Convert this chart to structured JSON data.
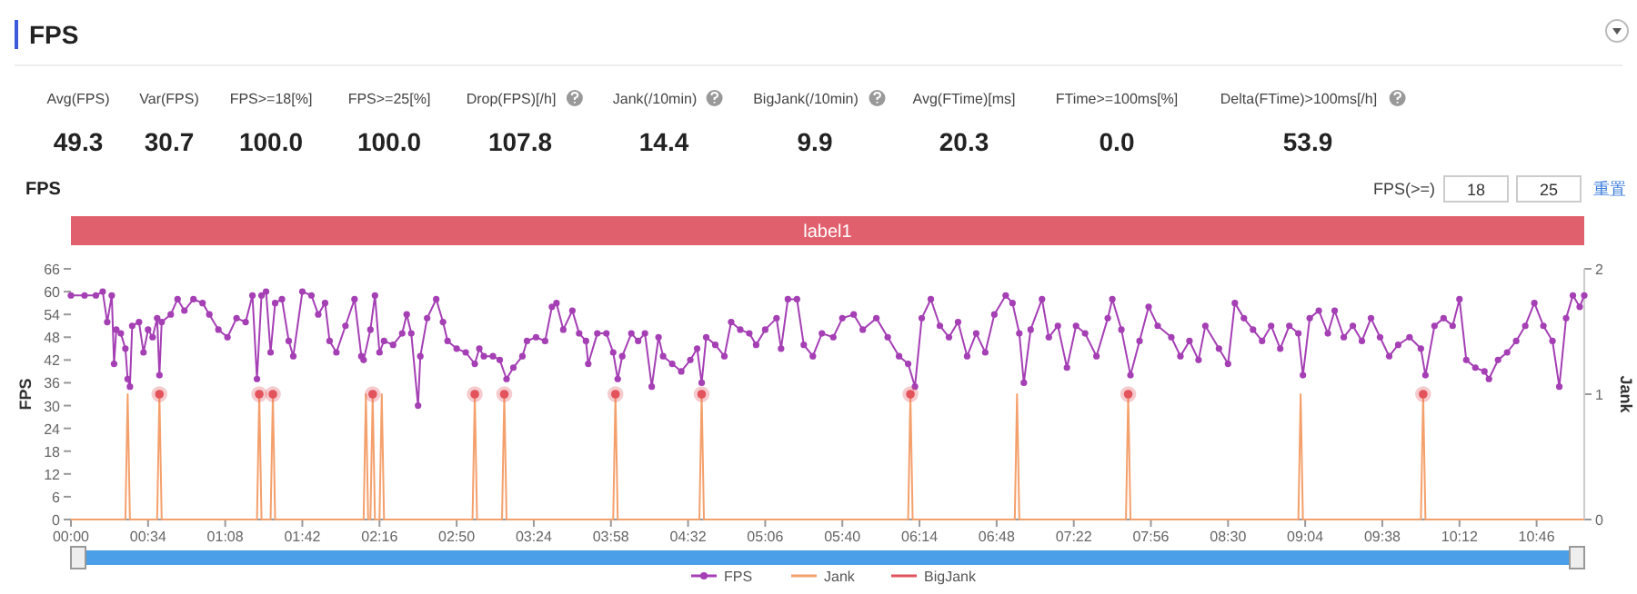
{
  "chart_data": [
    {
      "type": "other",
      "title": "FPS",
      "categories": [
        "Avg(FPS)",
        "Var(FPS)",
        "FPS>=18[%]",
        "FPS>=25[%]",
        "Drop(FPS)[/h]",
        "Jank(/10min)",
        "BigJank(/10min)",
        "Avg(FTime)[ms]",
        "FTime>=100ms[%]",
        "Delta(FTime)>100ms[/h]"
      ],
      "value_labels": [
        "49.3",
        "30.7",
        "100.0",
        "100.0",
        "107.8",
        "14.4",
        "9.9",
        "20.3",
        "0.0",
        "53.9"
      ]
    },
    {
      "type": "line",
      "title": "FPS",
      "ylabel": "FPS",
      "y2label": "Jank",
      "annotations": [
        "FPS(>=)",
        "18",
        "25",
        "重置",
        "label1"
      ],
      "xlim": [
        0,
        667
      ],
      "xticks": [
        {
          "value": 0,
          "label": "00:00"
        },
        {
          "value": 34,
          "label": "00:34"
        },
        {
          "value": 68,
          "label": "01:08"
        },
        {
          "value": 102,
          "label": "01:42"
        },
        {
          "value": 136,
          "label": "02:16"
        },
        {
          "value": 170,
          "label": "02:50"
        },
        {
          "value": 204,
          "label": "03:24"
        },
        {
          "value": 238,
          "label": "03:58"
        },
        {
          "value": 272,
          "label": "04:32"
        },
        {
          "value": 306,
          "label": "05:06"
        },
        {
          "value": 340,
          "label": "05:40"
        },
        {
          "value": 374,
          "label": "06:14"
        },
        {
          "value": 408,
          "label": "06:48"
        },
        {
          "value": 442,
          "label": "07:22"
        },
        {
          "value": 476,
          "label": "07:56"
        },
        {
          "value": 510,
          "label": "08:30"
        },
        {
          "value": 544,
          "label": "09:04"
        },
        {
          "value": 578,
          "label": "09:38"
        },
        {
          "value": 612,
          "label": "10:12"
        },
        {
          "value": 646,
          "label": "10:46"
        }
      ],
      "ylim": [
        0,
        66
      ],
      "yticks": [
        0,
        6,
        12,
        18,
        24,
        30,
        36,
        42,
        48,
        54,
        60,
        66
      ],
      "y2lim": [
        0,
        2
      ],
      "y2ticks": [
        0,
        1,
        2
      ],
      "legend": "bottom",
      "series": [
        {
          "name": "FPS",
          "color": "#a43fb4",
          "marker": "circle",
          "x": [
            0,
            6,
            11,
            14,
            16,
            18,
            19,
            20,
            22,
            24,
            25,
            26,
            27,
            30,
            32,
            34,
            36,
            38,
            39,
            40,
            44,
            47,
            50,
            54,
            58,
            61,
            65,
            69,
            73,
            77,
            80,
            82,
            84,
            86,
            88,
            90,
            93,
            96,
            98,
            102,
            106,
            109,
            112,
            114,
            117,
            121,
            125,
            128,
            129,
            132,
            134,
            136,
            138,
            142,
            146,
            148,
            150,
            153,
            154,
            157,
            161,
            164,
            166,
            170,
            174,
            178,
            180,
            182,
            186,
            189,
            192,
            195,
            199,
            201,
            205,
            209,
            212,
            214,
            217,
            221,
            224,
            227,
            228,
            232,
            236,
            239,
            241,
            243,
            247,
            250,
            253,
            256,
            259,
            261,
            265,
            269,
            273,
            276,
            278,
            280,
            284,
            288,
            291,
            295,
            299,
            302,
            306,
            311,
            313,
            316,
            320,
            323,
            327,
            331,
            336,
            340,
            345,
            349,
            355,
            360,
            365,
            369,
            372,
            375,
            379,
            383,
            387,
            391,
            395,
            399,
            403,
            407,
            412,
            415,
            418,
            420,
            423,
            428,
            431,
            435,
            439,
            443,
            447,
            452,
            457,
            459,
            463,
            467,
            471,
            475,
            479,
            485,
            489,
            493,
            497,
            500,
            506,
            510,
            513,
            517,
            521,
            525,
            529,
            533,
            537,
            541,
            543,
            546,
            550,
            554,
            557,
            561,
            565,
            569,
            573,
            577,
            581,
            585,
            590,
            595,
            597,
            601,
            605,
            609,
            612,
            615,
            619,
            623,
            625,
            629,
            633,
            637,
            641,
            645,
            649,
            653,
            656,
            659,
            662,
            665,
            667
          ],
          "values": [
            59,
            59,
            59,
            60,
            52,
            59,
            41,
            50,
            49,
            45,
            37,
            35,
            51,
            52,
            44,
            50,
            48,
            53,
            38,
            52,
            54,
            58,
            55,
            58,
            57,
            54,
            50,
            48,
            53,
            52,
            59,
            37,
            59,
            60,
            44,
            57,
            58,
            47,
            43,
            60,
            59,
            54,
            57,
            47,
            44,
            51,
            58,
            43,
            42,
            50,
            59,
            44,
            47,
            46,
            49,
            54,
            49,
            30,
            43,
            53,
            58,
            52,
            47,
            45,
            44,
            41,
            45,
            43,
            43,
            42,
            37,
            40,
            43,
            47,
            48,
            47,
            56,
            57,
            50,
            55,
            49,
            47,
            41,
            49,
            49,
            44,
            37,
            43,
            49,
            47,
            49,
            35,
            48,
            43,
            41,
            39,
            42,
            45,
            36,
            48,
            46,
            43,
            52,
            50,
            49,
            46,
            50,
            53,
            45,
            58,
            58,
            46,
            43,
            49,
            48,
            53,
            54,
            50,
            53,
            48,
            43,
            41,
            35,
            53,
            58,
            51,
            48,
            52,
            43,
            49,
            44,
            54,
            59,
            57,
            49,
            36,
            50,
            58,
            48,
            51,
            40,
            51,
            49,
            43,
            53,
            58,
            50,
            38,
            47,
            56,
            51,
            48,
            43,
            47,
            42,
            51,
            45,
            41,
            57,
            53,
            50,
            47,
            51,
            45,
            51,
            49,
            38,
            53,
            55,
            49,
            55,
            48,
            51,
            47,
            53,
            48,
            43,
            46,
            48,
            45,
            38,
            51,
            53,
            51,
            58,
            42,
            40,
            39,
            37,
            42,
            44,
            47,
            51,
            57,
            51,
            47,
            35,
            53,
            59,
            56,
            59
          ]
        },
        {
          "name": "Jank",
          "color": "#f4a06c",
          "marker": "none",
          "axis": "y2",
          "x": [
            0,
            24,
            25,
            26,
            38,
            39,
            40,
            82,
            83,
            84,
            88,
            89,
            90,
            129,
            130,
            131,
            132,
            133,
            134,
            136,
            137,
            138,
            177,
            178,
            179,
            190,
            191,
            192,
            239,
            240,
            241,
            277,
            278,
            279,
            369,
            370,
            371,
            416,
            417,
            418,
            465,
            466,
            467,
            541,
            542,
            543,
            595,
            596,
            597,
            667
          ],
          "values": [
            0,
            0,
            1,
            0,
            0,
            1,
            0,
            0,
            1,
            0,
            0,
            1,
            0,
            0,
            1,
            0,
            0,
            1,
            0,
            0,
            1,
            0,
            0,
            1,
            0,
            0,
            1,
            0,
            0,
            1,
            0,
            0,
            1,
            0,
            0,
            1,
            0,
            0,
            1,
            0,
            0,
            1,
            0,
            0,
            1,
            0,
            0,
            1,
            0,
            0
          ]
        },
        {
          "name": "BigJank",
          "type": "scatter",
          "color": "#e2545c",
          "marker": "circle",
          "axis": "y2",
          "x": [
            39,
            83,
            89,
            133,
            178,
            191,
            240,
            278,
            370,
            466,
            596
          ],
          "values": [
            1,
            1,
            1,
            1,
            1,
            1,
            1,
            1,
            1,
            1,
            1
          ]
        }
      ]
    }
  ]
}
